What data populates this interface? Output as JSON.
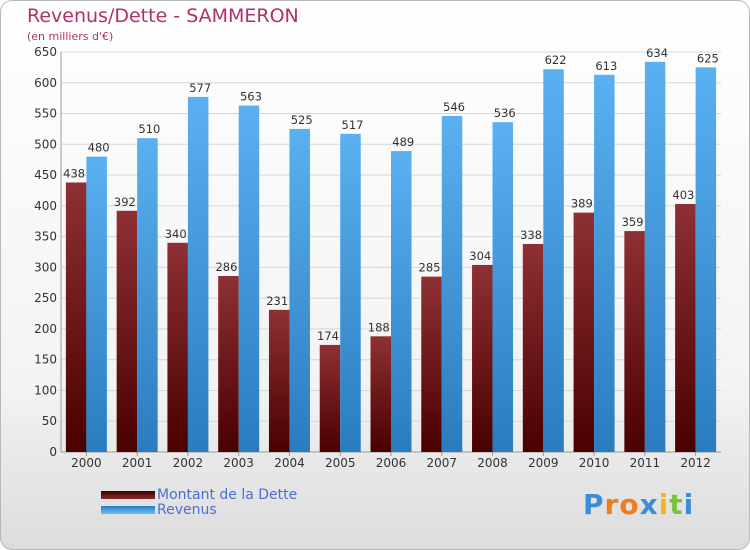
{
  "title": "Revenus/Dette - SAMMERON",
  "subtitle": "(en milliers d'€)",
  "logo": {
    "letters": [
      {
        "ch": "P",
        "color": "#3a8ed8"
      },
      {
        "ch": "r",
        "color": "#f07c1e"
      },
      {
        "ch": "o",
        "color": "#f07c1e"
      },
      {
        "ch": "x",
        "color": "#3a8ed8"
      },
      {
        "ch": "i",
        "color": "#f0b81e"
      },
      {
        "ch": "t",
        "color": "#7cc242"
      },
      {
        "ch": "i",
        "color": "#3a8ed8"
      }
    ]
  },
  "legend": {
    "position": "bottom-left",
    "items": [
      {
        "label": "Montant de la Dette",
        "color": "#7a1a1a"
      },
      {
        "label": "Revenus",
        "color": "#4aa3e8"
      }
    ]
  },
  "chart_data": {
    "type": "bar",
    "categories": [
      "2000",
      "2001",
      "2002",
      "2003",
      "2004",
      "2005",
      "2006",
      "2007",
      "2008",
      "2009",
      "2010",
      "2011",
      "2012"
    ],
    "series": [
      {
        "name": "Montant de la Dette",
        "values": [
          438,
          392,
          340,
          286,
          231,
          174,
          188,
          285,
          304,
          338,
          389,
          359,
          403
        ],
        "color": "#7a1a1a"
      },
      {
        "name": "Revenus",
        "values": [
          480,
          510,
          577,
          563,
          525,
          517,
          489,
          546,
          536,
          622,
          613,
          634,
          625
        ],
        "color": "#4aa3e8"
      }
    ],
    "yticks": [
      0,
      50,
      100,
      150,
      200,
      250,
      300,
      350,
      400,
      450,
      500,
      550,
      600,
      650
    ],
    "ylim": [
      0,
      650
    ],
    "grid": true,
    "xlabel": "",
    "ylabel": ""
  }
}
